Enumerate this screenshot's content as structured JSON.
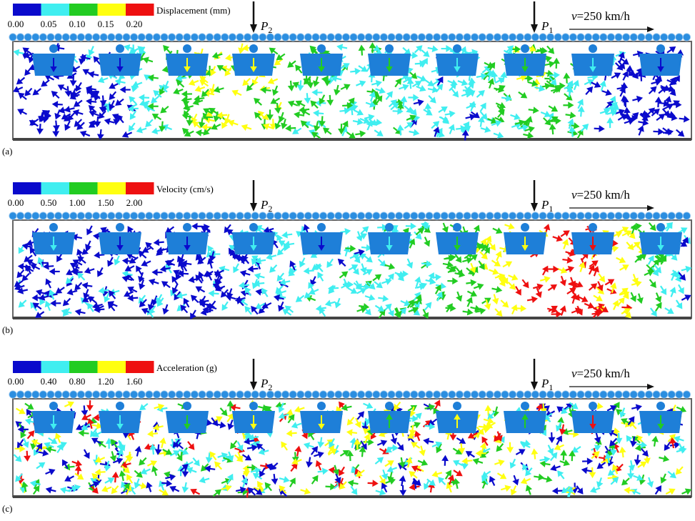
{
  "panels": [
    {
      "label": "(a)",
      "legend": {
        "title": "Displacement (mm)",
        "colors": [
          "#0a0acc",
          "#40eef0",
          "#22cc22",
          "#ffff10",
          "#ee1010"
        ],
        "ticks": [
          "0.00",
          "0.05",
          "0.10",
          "0.15",
          "0.20"
        ]
      },
      "loads": [
        {
          "letter": "P",
          "subscript": "2"
        },
        {
          "letter": "P",
          "subscript": "1"
        }
      ],
      "speed": {
        "symbol": "v",
        "text": "=250 km/h"
      }
    },
    {
      "label": "(b)",
      "legend": {
        "title": "Velocity (cm/s)",
        "colors": [
          "#0a0acc",
          "#40eef0",
          "#22cc22",
          "#ffff10",
          "#ee1010"
        ],
        "ticks": [
          "0.00",
          "0.50",
          "1.00",
          "1.50",
          "2.00"
        ]
      },
      "loads": [
        {
          "letter": "P",
          "subscript": "2"
        },
        {
          "letter": "P",
          "subscript": "1"
        }
      ],
      "speed": {
        "symbol": "v",
        "text": "=250 km/h"
      }
    },
    {
      "label": "(c)",
      "legend": {
        "title": "Acceleration (g)",
        "colors": [
          "#0a0acc",
          "#40eef0",
          "#22cc22",
          "#ffff10",
          "#ee1010"
        ],
        "ticks": [
          "0.00",
          "0.40",
          "0.80",
          "1.20",
          "1.60"
        ]
      },
      "loads": [
        {
          "letter": "P",
          "subscript": "2"
        },
        {
          "letter": "P",
          "subscript": "1"
        }
      ],
      "speed": {
        "symbol": "v",
        "text": "=250 km/h"
      }
    }
  ]
}
